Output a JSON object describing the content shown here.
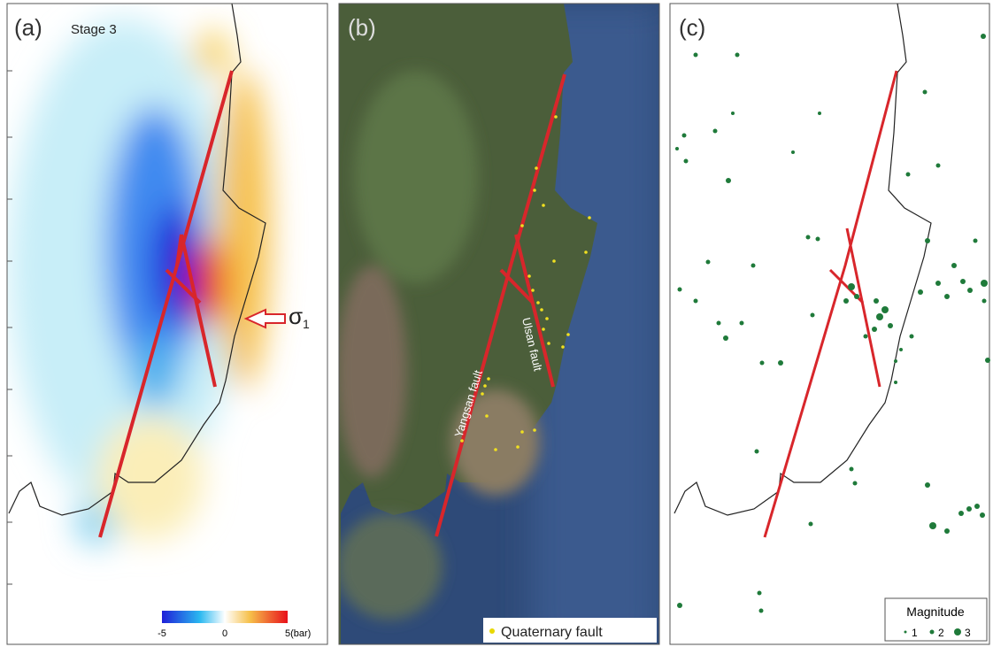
{
  "panels": [
    {
      "label": "(a)",
      "subtitle": "Stage 3",
      "stress_label": "σ",
      "stress_sub": "1",
      "colorbar_ticks": [
        "-5",
        "0",
        "5(bar)"
      ]
    },
    {
      "label": "(b)",
      "faults": [
        "Yangsan fault",
        "Ulsan fault"
      ],
      "legend": "Quaternary fault"
    },
    {
      "label": "(c)",
      "legend_title": "Magnitude",
      "legend_items": [
        "1",
        "2",
        "3"
      ]
    }
  ]
}
